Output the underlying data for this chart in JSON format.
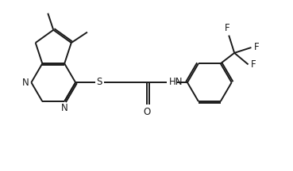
{
  "bg_color": "#ffffff",
  "line_color": "#1a1a1a",
  "bond_width": 1.4,
  "font_size": 8.5,
  "fig_width": 3.69,
  "fig_height": 2.16,
  "dpi": 100,
  "xlim": [
    0,
    9.5
  ],
  "ylim": [
    0,
    5.6
  ]
}
